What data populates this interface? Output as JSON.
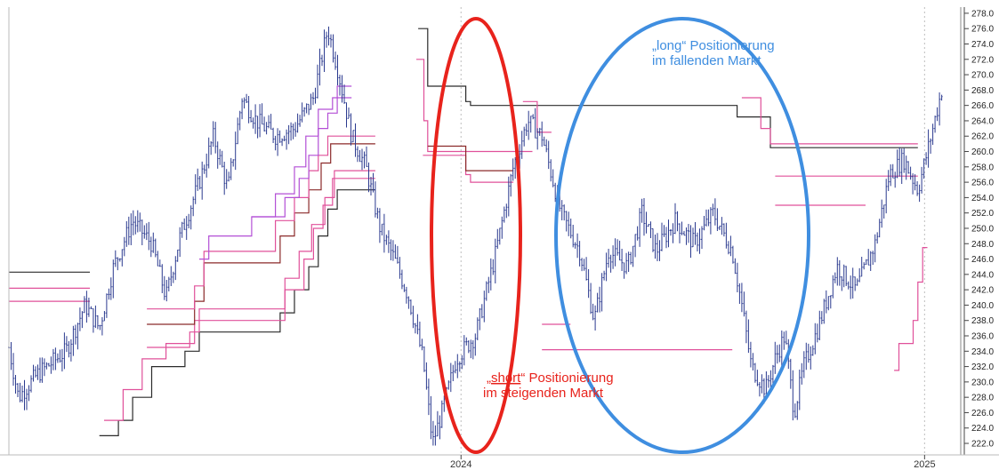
{
  "chart_data": {
    "type": "line",
    "title": "",
    "xlabel": "",
    "ylabel": "",
    "ylim": [
      220.5,
      278.8
    ],
    "y_ticks": [
      222.0,
      224.0,
      226.0,
      228.0,
      230.0,
      232.0,
      234.0,
      236.0,
      238.0,
      240.0,
      242.0,
      244.0,
      246.0,
      248.0,
      250.0,
      252.0,
      254.0,
      256.0,
      258.0,
      260.0,
      262.0,
      264.0,
      266.0,
      268.0,
      270.0,
      272.0,
      274.0,
      276.0,
      278.0
    ],
    "y_tick_labels": [
      "222.0",
      "224.0",
      "226.0",
      "228.0",
      "230.0",
      "232.0",
      "234.0",
      "236.0",
      "238.0",
      "240.0",
      "242.0",
      "244.0",
      "246.0",
      "248.0",
      "250.0",
      "252.0",
      "254.0",
      "256.0",
      "258.0",
      "260.0",
      "262.0",
      "264.0",
      "266.0",
      "268.0",
      "270.0",
      "272.0",
      "274.0",
      "276.0",
      "278.0"
    ],
    "x_ticks": [
      {
        "label": "2024",
        "x": 0.475
      },
      {
        "label": "2025",
        "x": 0.962
      }
    ],
    "price_series": {
      "name": "",
      "color": "#2b3a8f",
      "anchors": [
        [
          0.0,
          234.5
        ],
        [
          0.01,
          228.0
        ],
        [
          0.03,
          231.0
        ],
        [
          0.06,
          234.0
        ],
        [
          0.08,
          240.0
        ],
        [
          0.095,
          237.0
        ],
        [
          0.11,
          245.0
        ],
        [
          0.13,
          251.0
        ],
        [
          0.15,
          248.0
        ],
        [
          0.165,
          241.0
        ],
        [
          0.18,
          249.0
        ],
        [
          0.2,
          256.0
        ],
        [
          0.215,
          262.0
        ],
        [
          0.23,
          255.0
        ],
        [
          0.245,
          267.0
        ],
        [
          0.26,
          264.0
        ],
        [
          0.28,
          262.0
        ],
        [
          0.3,
          263.0
        ],
        [
          0.32,
          267.0
        ],
        [
          0.335,
          276.0
        ],
        [
          0.345,
          271.0
        ],
        [
          0.36,
          262.0
        ],
        [
          0.375,
          258.0
        ],
        [
          0.39,
          250.0
        ],
        [
          0.405,
          246.0
        ],
        [
          0.42,
          241.0
        ],
        [
          0.435,
          233.0
        ],
        [
          0.445,
          222.0
        ],
        [
          0.455,
          226.0
        ],
        [
          0.47,
          233.0
        ],
        [
          0.49,
          236.0
        ],
        [
          0.51,
          246.0
        ],
        [
          0.53,
          258.0
        ],
        [
          0.545,
          264.0
        ],
        [
          0.56,
          262.0
        ],
        [
          0.58,
          252.0
        ],
        [
          0.6,
          247.0
        ],
        [
          0.615,
          238.0
        ],
        [
          0.63,
          247.0
        ],
        [
          0.65,
          245.0
        ],
        [
          0.665,
          252.0
        ],
        [
          0.68,
          247.0
        ],
        [
          0.7,
          251.0
        ],
        [
          0.72,
          248.0
        ],
        [
          0.74,
          252.0
        ],
        [
          0.76,
          247.0
        ],
        [
          0.77,
          240.0
        ],
        [
          0.78,
          232.0
        ],
        [
          0.795,
          229.0
        ],
        [
          0.805,
          233.0
        ],
        [
          0.815,
          236.0
        ],
        [
          0.825,
          226.0
        ],
        [
          0.835,
          232.0
        ],
        [
          0.85,
          237.0
        ],
        [
          0.87,
          245.0
        ],
        [
          0.89,
          242.0
        ],
        [
          0.91,
          248.0
        ],
        [
          0.925,
          257.0
        ],
        [
          0.94,
          259.0
        ],
        [
          0.955,
          255.0
        ],
        [
          0.965,
          260.0
        ],
        [
          0.98,
          268.0
        ]
      ]
    },
    "level_lines": [
      {
        "color": "#2b2b2b",
        "points": [
          [
            0.0,
            244.3
          ],
          [
            0.085,
            244.3
          ]
        ]
      },
      {
        "color": "#e0509a",
        "points": [
          [
            0.0,
            242.2
          ],
          [
            0.085,
            242.2
          ]
        ]
      },
      {
        "color": "#e0509a",
        "points": [
          [
            0.0,
            240.5
          ],
          [
            0.085,
            240.5
          ]
        ]
      },
      {
        "color": "#2b2b2b",
        "points": [
          [
            0.095,
            223.0
          ],
          [
            0.115,
            223.0
          ],
          [
            0.115,
            225.0
          ],
          [
            0.13,
            225.0
          ],
          [
            0.13,
            228.0
          ],
          [
            0.15,
            228.0
          ],
          [
            0.15,
            232.0
          ],
          [
            0.185,
            232.0
          ],
          [
            0.185,
            234.0
          ],
          [
            0.2,
            234.0
          ],
          [
            0.2,
            236.5
          ],
          [
            0.285,
            236.5
          ],
          [
            0.285,
            239.0
          ],
          [
            0.3,
            239.0
          ],
          [
            0.3,
            242.0
          ],
          [
            0.315,
            242.0
          ],
          [
            0.315,
            245.0
          ],
          [
            0.325,
            245.0
          ],
          [
            0.325,
            249.0
          ],
          [
            0.335,
            249.0
          ],
          [
            0.335,
            252.5
          ],
          [
            0.345,
            252.5
          ],
          [
            0.345,
            255.0
          ],
          [
            0.385,
            255.0
          ]
        ]
      },
      {
        "color": "#e0509a",
        "points": [
          [
            0.1,
            225.0
          ],
          [
            0.12,
            225.0
          ],
          [
            0.12,
            229.0
          ],
          [
            0.14,
            229.0
          ],
          [
            0.14,
            233.0
          ],
          [
            0.165,
            233.0
          ],
          [
            0.165,
            235.0
          ],
          [
            0.195,
            235.0
          ],
          [
            0.195,
            238.0
          ],
          [
            0.29,
            238.0
          ],
          [
            0.29,
            242.0
          ],
          [
            0.31,
            242.0
          ],
          [
            0.31,
            246.0
          ],
          [
            0.32,
            246.0
          ],
          [
            0.32,
            250.0
          ],
          [
            0.33,
            250.0
          ],
          [
            0.33,
            253.0
          ],
          [
            0.34,
            253.0
          ],
          [
            0.34,
            256.5
          ],
          [
            0.385,
            256.5
          ]
        ]
      },
      {
        "color": "#e0509a",
        "points": [
          [
            0.145,
            234.5
          ],
          [
            0.19,
            234.5
          ],
          [
            0.19,
            236.5
          ],
          [
            0.2,
            236.5
          ],
          [
            0.2,
            239.5
          ],
          [
            0.29,
            239.5
          ],
          [
            0.29,
            243.5
          ],
          [
            0.305,
            243.5
          ],
          [
            0.305,
            247.0
          ],
          [
            0.318,
            247.0
          ],
          [
            0.318,
            250.5
          ],
          [
            0.332,
            250.5
          ],
          [
            0.332,
            254.0
          ],
          [
            0.342,
            254.0
          ],
          [
            0.342,
            257.5
          ],
          [
            0.385,
            257.5
          ]
        ]
      },
      {
        "color": "#8b2a2a",
        "points": [
          [
            0.145,
            237.5
          ],
          [
            0.195,
            237.5
          ],
          [
            0.195,
            240.5
          ],
          [
            0.205,
            240.5
          ],
          [
            0.205,
            245.5
          ],
          [
            0.285,
            245.5
          ],
          [
            0.285,
            249.0
          ],
          [
            0.3,
            249.0
          ],
          [
            0.3,
            252.0
          ],
          [
            0.315,
            252.0
          ],
          [
            0.315,
            255.0
          ],
          [
            0.328,
            255.0
          ],
          [
            0.328,
            258.5
          ],
          [
            0.338,
            258.5
          ],
          [
            0.338,
            261.0
          ],
          [
            0.385,
            261.0
          ]
        ]
      },
      {
        "color": "#e0509a",
        "points": [
          [
            0.145,
            239.5
          ],
          [
            0.195,
            239.5
          ],
          [
            0.195,
            242.5
          ],
          [
            0.205,
            242.5
          ],
          [
            0.205,
            247.0
          ],
          [
            0.28,
            247.0
          ],
          [
            0.28,
            251.0
          ],
          [
            0.3,
            251.0
          ],
          [
            0.3,
            254.0
          ],
          [
            0.315,
            254.0
          ],
          [
            0.315,
            257.5
          ],
          [
            0.325,
            257.5
          ],
          [
            0.325,
            259.5
          ],
          [
            0.335,
            259.5
          ],
          [
            0.335,
            262.0
          ],
          [
            0.385,
            262.0
          ]
        ]
      },
      {
        "color": "#b34fd6",
        "points": [
          [
            0.2,
            246.0
          ],
          [
            0.21,
            246.0
          ],
          [
            0.21,
            249.0
          ],
          [
            0.255,
            249.0
          ],
          [
            0.255,
            251.5
          ],
          [
            0.29,
            251.5
          ],
          [
            0.29,
            254.0
          ],
          [
            0.305,
            254.0
          ],
          [
            0.305,
            256.5
          ],
          [
            0.315,
            256.5
          ],
          [
            0.315,
            259.5
          ],
          [
            0.325,
            259.5
          ],
          [
            0.325,
            263.0
          ],
          [
            0.335,
            263.0
          ],
          [
            0.335,
            265.0
          ],
          [
            0.345,
            265.0
          ],
          [
            0.345,
            268.5
          ],
          [
            0.36,
            268.5
          ]
        ]
      },
      {
        "color": "#b34fd6",
        "points": [
          [
            0.255,
            251.5
          ],
          [
            0.28,
            251.5
          ],
          [
            0.28,
            254.5
          ],
          [
            0.3,
            254.5
          ],
          [
            0.3,
            258.0
          ],
          [
            0.312,
            258.0
          ],
          [
            0.312,
            262.0
          ],
          [
            0.325,
            262.0
          ],
          [
            0.325,
            265.5
          ],
          [
            0.34,
            265.5
          ],
          [
            0.34,
            267.0
          ],
          [
            0.36,
            267.0
          ]
        ]
      },
      {
        "color": "#2b2b2b",
        "points": [
          [
            0.43,
            276.0
          ],
          [
            0.44,
            276.0
          ],
          [
            0.44,
            268.5
          ],
          [
            0.48,
            268.5
          ],
          [
            0.48,
            266.5
          ],
          [
            0.485,
            266.5
          ],
          [
            0.485,
            266.0
          ],
          [
            0.765,
            266.0
          ],
          [
            0.765,
            264.5
          ],
          [
            0.8,
            264.5
          ],
          [
            0.8,
            260.5
          ],
          [
            0.955,
            260.5
          ]
        ]
      },
      {
        "color": "#e0509a",
        "points": [
          [
            0.428,
            272.0
          ],
          [
            0.436,
            272.0
          ],
          [
            0.436,
            264.0
          ],
          [
            0.44,
            264.0
          ],
          [
            0.44,
            260.0
          ],
          [
            0.55,
            260.0
          ]
        ]
      },
      {
        "color": "#e0509a",
        "points": [
          [
            0.435,
            259.5
          ],
          [
            0.48,
            259.5
          ],
          [
            0.48,
            257.0
          ],
          [
            0.485,
            257.0
          ],
          [
            0.485,
            256.0
          ],
          [
            0.53,
            256.0
          ]
        ]
      },
      {
        "color": "#8b2a2a",
        "points": [
          [
            0.44,
            260.7
          ],
          [
            0.48,
            260.7
          ],
          [
            0.48,
            257.5
          ],
          [
            0.53,
            257.5
          ]
        ]
      },
      {
        "color": "#e0509a",
        "points": [
          [
            0.54,
            266.5
          ],
          [
            0.555,
            266.5
          ],
          [
            0.555,
            262.5
          ],
          [
            0.57,
            262.5
          ]
        ]
      },
      {
        "color": "#e0509a",
        "points": [
          [
            0.56,
            237.5
          ],
          [
            0.59,
            237.5
          ]
        ]
      },
      {
        "color": "#e0509a",
        "points": [
          [
            0.56,
            234.2
          ],
          [
            0.76,
            234.2
          ]
        ]
      },
      {
        "color": "#e0509a",
        "points": [
          [
            0.77,
            267.0
          ],
          [
            0.79,
            267.0
          ],
          [
            0.79,
            263.0
          ],
          [
            0.8,
            263.0
          ],
          [
            0.8,
            261.0
          ],
          [
            0.955,
            261.0
          ]
        ]
      },
      {
        "color": "#e0509a",
        "points": [
          [
            0.805,
            256.8
          ],
          [
            0.955,
            256.8
          ]
        ]
      },
      {
        "color": "#e0509a",
        "points": [
          [
            0.805,
            253.0
          ],
          [
            0.9,
            253.0
          ]
        ]
      },
      {
        "color": "#e0509a",
        "points": [
          [
            0.93,
            231.5
          ],
          [
            0.935,
            231.5
          ],
          [
            0.935,
            235.0
          ],
          [
            0.95,
            235.0
          ],
          [
            0.95,
            238.0
          ],
          [
            0.955,
            238.0
          ],
          [
            0.955,
            243.0
          ],
          [
            0.96,
            243.0
          ],
          [
            0.96,
            247.5
          ],
          [
            0.965,
            247.5
          ]
        ]
      }
    ],
    "annotations": [
      {
        "text_parts": [
          "„",
          "short",
          "“ Positionierung"
        ],
        "text_line2": "im steigenden Markt",
        "color": "#e8231c"
      },
      {
        "text_line1": "„long“ Positionierung",
        "text_line2": "im fallenden Markt",
        "color": "#3f8ee0"
      }
    ],
    "ellipses": [
      {
        "name": "red-highlight-ellipse",
        "color": "#e8231c"
      },
      {
        "name": "blue-highlight-ellipse",
        "color": "#3f8ee0"
      }
    ]
  }
}
